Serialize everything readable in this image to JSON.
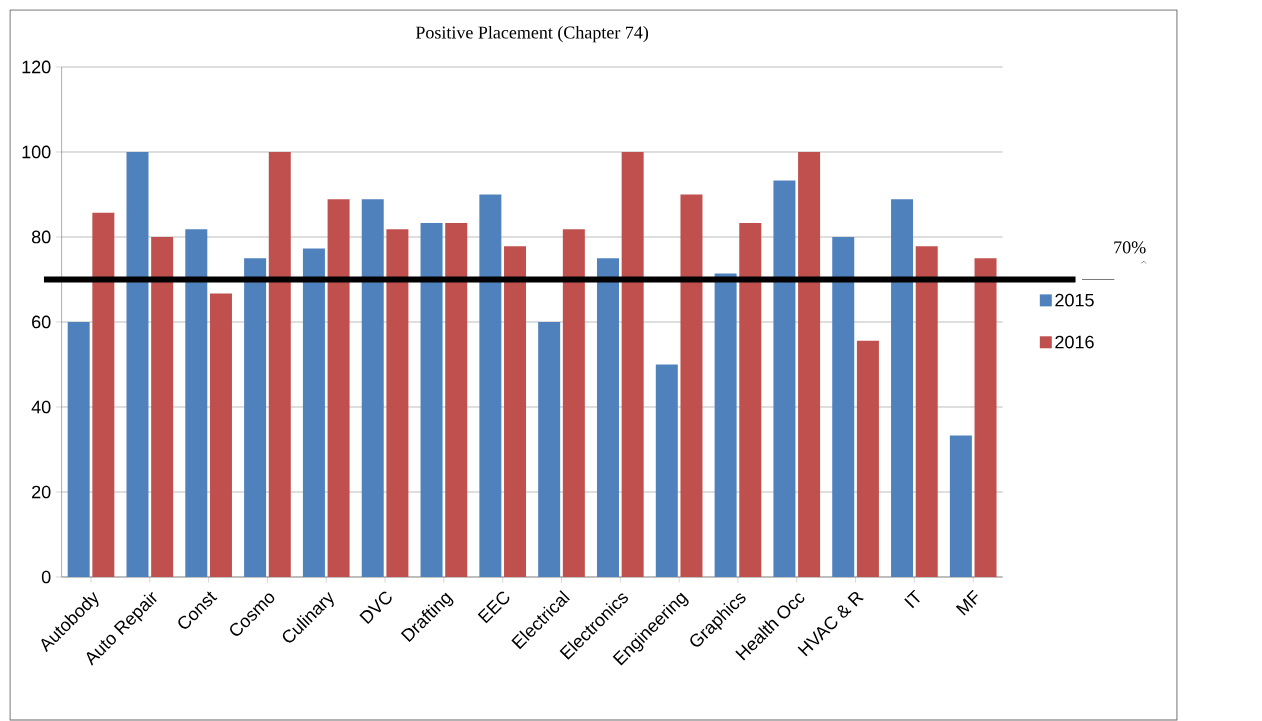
{
  "chart_data": {
    "type": "bar",
    "title": "Positive Placement (Chapter 74)",
    "categories": [
      "Autobody",
      "Auto Repair",
      "Const",
      "Cosmo",
      "Culinary",
      "DVC",
      "Drafting",
      "EEC",
      "Electrical",
      "Electronics",
      "Engineering",
      "Graphics",
      "Health Occ",
      "HVAC & R",
      "IT",
      "MF"
    ],
    "series": [
      {
        "name": "2015",
        "color": "#4f81bd",
        "values": [
          60,
          100,
          81.8,
          75,
          77.3,
          88.9,
          83.3,
          90,
          60,
          75,
          50,
          71.4,
          93.3,
          80,
          88.9,
          33.3
        ]
      },
      {
        "name": "2016",
        "color": "#c0504d",
        "values": [
          85.7,
          80,
          66.7,
          100,
          88.9,
          81.8,
          83.3,
          77.8,
          81.8,
          100,
          90,
          83.3,
          100,
          55.6,
          77.8,
          75
        ]
      }
    ],
    "ylim": [
      0,
      120
    ],
    "yticks": [
      0,
      20,
      40,
      60,
      80,
      100,
      120
    ],
    "grid": "y",
    "legend": "right",
    "ref_lines": [
      {
        "axis": "y",
        "value": 70,
        "label": "70%",
        "color": "#000000"
      }
    ]
  }
}
